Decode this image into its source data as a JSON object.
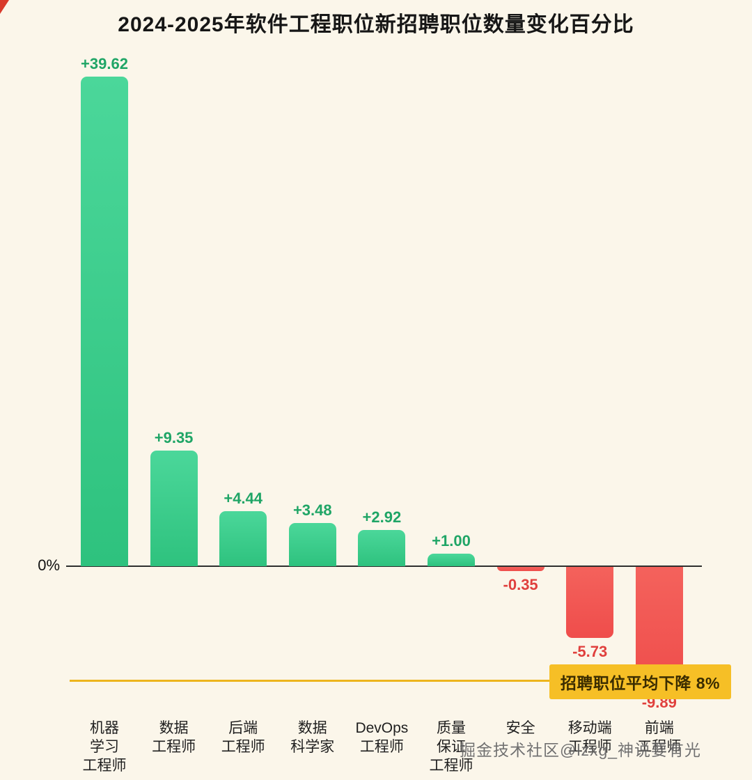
{
  "page": {
    "watermark": "掘金技术社区@lzxg_神说要有光"
  },
  "chart_data": {
    "type": "bar",
    "title": "2024-2025年软件工程职位新招聘职位数量变化百分比",
    "categories": [
      "机器\n学习\n工程师",
      "数据\n工程师",
      "后端\n工程师",
      "数据\n科学家",
      "DevOps\n工程师",
      "质量\n保证\n工程师",
      "安全",
      "移动端\n工程师",
      "前端\n工程师"
    ],
    "values": [
      39.62,
      9.35,
      4.44,
      3.48,
      2.92,
      1.0,
      -0.35,
      -5.73,
      -9.89
    ],
    "value_labels": [
      "+39.62",
      "+9.35",
      "+4.44",
      "+3.48",
      "+2.92",
      "+1.00",
      "-0.35",
      "-5.73",
      "-9.89"
    ],
    "xlabel": "",
    "ylabel": "",
    "baseline_label": "0%",
    "ylim": [
      -12,
      42
    ],
    "grid": false,
    "legend": false,
    "positive_color": "#35cf8d",
    "negative_color": "#f4504e",
    "positive_label_color": "#1fa566",
    "negative_label_color": "#e0403d",
    "background_color": "#fbf6ea",
    "gold_line_color": "#edb51e",
    "annotation": {
      "text": "招聘职位平均下降 8%",
      "bg": "#f6bf26",
      "text_color": "#3a2c00"
    }
  }
}
